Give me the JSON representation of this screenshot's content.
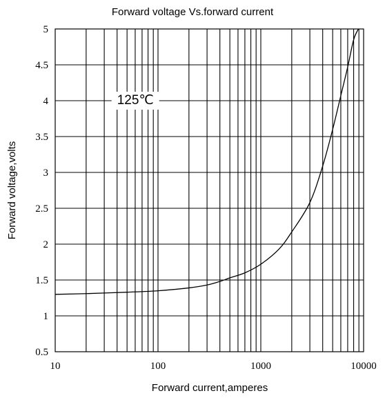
{
  "chart_data": {
    "type": "line",
    "title": "Forward voltage Vs.forward current",
    "xlabel": "Forward current,amperes",
    "ylabel": "Forward voltage,volts",
    "xscale": "log",
    "xlim": [
      10,
      10000
    ],
    "ylim": [
      0.5,
      5
    ],
    "x_ticks": [
      10,
      100,
      1000,
      10000
    ],
    "x_tick_labels": [
      "10",
      "100",
      "1000",
      "10000"
    ],
    "y_ticks": [
      0.5,
      1,
      1.5,
      2,
      2.5,
      3,
      3.5,
      4,
      4.5,
      5
    ],
    "y_tick_labels": [
      "0.5",
      "1",
      "1.5",
      "2",
      "2.5",
      "3",
      "3.5",
      "4",
      "4.5",
      "5"
    ],
    "grid": true,
    "annotation": {
      "text": "125℃",
      "x": 40,
      "y": 4.0
    },
    "series": [
      {
        "x": [
          10,
          20,
          50,
          100,
          200,
          300,
          400,
          500,
          700,
          1000,
          1500,
          2000,
          3000,
          4000,
          5000,
          6000,
          7000,
          8000,
          8900
        ],
        "y": [
          1.3,
          1.31,
          1.33,
          1.35,
          1.39,
          1.43,
          1.48,
          1.53,
          1.6,
          1.72,
          1.93,
          2.17,
          2.58,
          3.09,
          3.6,
          4.07,
          4.47,
          4.85,
          5.0
        ]
      }
    ]
  }
}
